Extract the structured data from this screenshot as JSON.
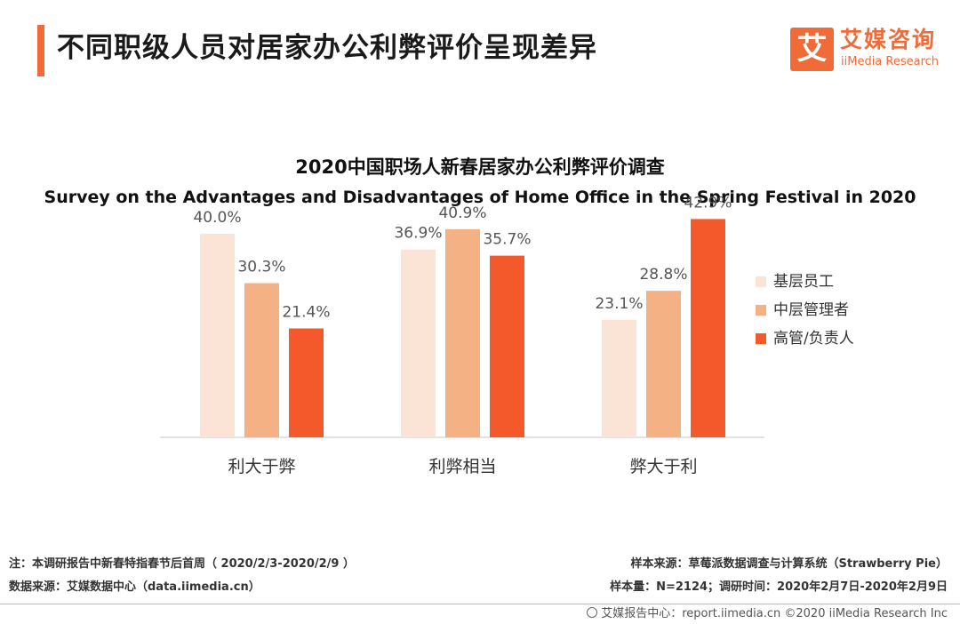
{
  "header": {
    "title": "不同职级人员对居家办公利弊评价呈现差异"
  },
  "logo": {
    "mark": "艾",
    "name_cn": "艾媒咨询",
    "name_en": "iiMedia Research"
  },
  "chart_data": {
    "type": "bar",
    "title": "2020中国职场人新春居家办公利弊评价调查",
    "subtitle": "Survey on the Advantages and Disadvantages  of Home Office in the Spring Festival in 2020",
    "categories": [
      "利大于弊",
      "利弊相当",
      "弊大于利"
    ],
    "series": [
      {
        "name": "基层员工",
        "values": [
          40.0,
          36.9,
          23.1
        ],
        "color": "#fbe3d6"
      },
      {
        "name": "中层管理者",
        "values": [
          30.3,
          40.9,
          28.8
        ],
        "color": "#f4b183"
      },
      {
        "name": "高管/负责人",
        "values": [
          21.4,
          35.7,
          42.9
        ],
        "color": "#f4592c"
      }
    ],
    "value_suffix": "%",
    "ylim": [
      0,
      50
    ],
    "grid": false,
    "legend_position": "right"
  },
  "footer": {
    "note": "注：本调研报告中新春特指春节后首周（ 2020/2/3-2020/2/9 ）",
    "data_source": "数据来源：艾媒数据中心（data.iimedia.cn）",
    "sample_source": "样本来源：草莓派数据调查与计算系统（Strawberry   Pie）",
    "sample_size": "样本量：N=2124；调研时间：2020年2月7日-2020年2月9日",
    "copyright": "艾媒报告中心：report.iimedia.cn  ©2020  iiMedia Research  Inc"
  }
}
